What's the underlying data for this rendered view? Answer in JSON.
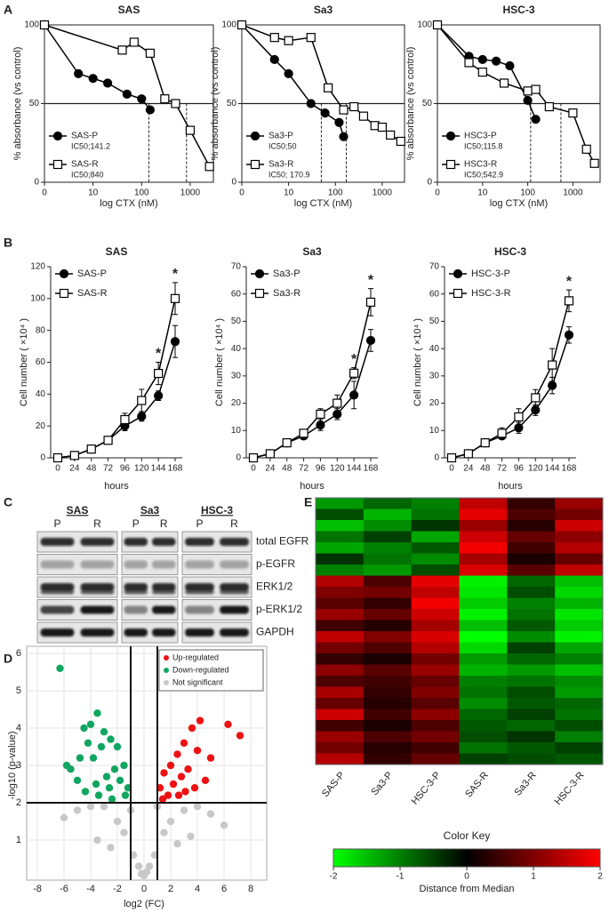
{
  "panels": [
    "A",
    "B",
    "C",
    "D",
    "E"
  ],
  "chart_data": [
    {
      "type": "line",
      "title": "SAS",
      "xscale": "log",
      "xlim": [
        0,
        3000
      ],
      "xticks": [
        0,
        10,
        100,
        1000
      ],
      "ylim": [
        0,
        100
      ],
      "yticks": [
        0,
        50,
        100
      ],
      "xlabel": "log CTX (nM)",
      "ylabel": "% absorbance (vs control)",
      "hline": 50,
      "frame": true,
      "legend": "lower left",
      "series": [
        {
          "name": "SAS-P",
          "marker": "circle",
          "color": "#000000",
          "x": [
            0,
            5,
            10,
            20,
            50,
            100,
            150
          ],
          "values": [
            100,
            69,
            66,
            63,
            56,
            53,
            46
          ],
          "ic50": 141.2,
          "ic50_label": "IC50;141.2"
        },
        {
          "name": "SAS-R",
          "marker": "square",
          "color": "#000000",
          "x": [
            0,
            40,
            70,
            150,
            300,
            500,
            1000,
            2500
          ],
          "values": [
            100,
            84,
            89,
            82,
            53,
            50,
            33,
            10
          ],
          "ic50": 840,
          "ic50_label": "IC50;840"
        }
      ]
    },
    {
      "type": "line",
      "title": "Sa3",
      "xscale": "log",
      "xlim": [
        0,
        3000
      ],
      "xticks": [
        0,
        10,
        100,
        1000
      ],
      "ylim": [
        0,
        100
      ],
      "yticks": [
        0,
        50,
        100
      ],
      "xlabel": "log CTX (nM)",
      "ylabel": "% absorbance (vs control)",
      "hline": 50,
      "frame": true,
      "legend": "lower left",
      "series": [
        {
          "name": "Sa3-P",
          "marker": "circle",
          "color": "#000000",
          "x": [
            0,
            5,
            10,
            30,
            60,
            120,
            150
          ],
          "values": [
            100,
            78,
            69,
            50,
            44,
            38,
            29
          ],
          "ic50": 50,
          "ic50_label": "IC50;50"
        },
        {
          "name": "Sa3-R",
          "marker": "square",
          "color": "#000000",
          "x": [
            0,
            5,
            10,
            30,
            70,
            150,
            250,
            400,
            700,
            1000,
            1500,
            2500
          ],
          "values": [
            100,
            92,
            90,
            92,
            60,
            46,
            48,
            42,
            36,
            35,
            30,
            26
          ],
          "ic50": 170.9,
          "ic50_label": "IC50; 170.9"
        }
      ]
    },
    {
      "type": "line",
      "title": "HSC-3",
      "xscale": "log",
      "xlim": [
        0,
        4000
      ],
      "xticks": [
        0,
        10,
        100,
        1000
      ],
      "ylim": [
        0,
        100
      ],
      "yticks": [
        0,
        50,
        100
      ],
      "xlabel": "log CTX (nM)",
      "ylabel": "% absorbance (vs control)",
      "hline": 50,
      "frame": true,
      "legend": "lower left",
      "series": [
        {
          "name": "HSC3-P",
          "marker": "circle",
          "color": "#000000",
          "x": [
            0,
            5,
            10,
            20,
            40,
            100,
            150
          ],
          "values": [
            100,
            80,
            78,
            77,
            74,
            52,
            40
          ],
          "ic50": 115.8,
          "ic50_label": "IC50;115.8"
        },
        {
          "name": "HSC3-R",
          "marker": "square",
          "color": "#000000",
          "x": [
            0,
            5,
            10,
            30,
            100,
            150,
            300,
            1000,
            2000,
            3000
          ],
          "values": [
            100,
            76,
            70,
            63,
            58,
            59,
            48,
            44,
            21,
            12
          ],
          "ic50": 542.9,
          "ic50_label": "IC50;542.9"
        }
      ]
    },
    {
      "type": "line",
      "title": "SAS",
      "x": [
        0,
        24,
        48,
        72,
        96,
        120,
        144,
        168
      ],
      "xlim": [
        0,
        168
      ],
      "xticks": [
        0,
        24,
        48,
        72,
        96,
        120,
        144,
        168
      ],
      "ylim": [
        0,
        120
      ],
      "yticks": [
        0,
        20,
        40,
        60,
        80,
        100,
        120
      ],
      "xlabel": "hours",
      "ylabel": "Cell number ( ×10⁴ )",
      "frame": false,
      "legend": "upper left",
      "series": [
        {
          "name": "SAS-P",
          "marker": "circle",
          "color": "#000000",
          "values": [
            0,
            1.5,
            5.5,
            11,
            20,
            26,
            39,
            73
          ],
          "errors": [
            0,
            0.5,
            1,
            1.5,
            3,
            3,
            3,
            10
          ]
        },
        {
          "name": "SAS-R",
          "marker": "square",
          "color": "#000000",
          "values": [
            0,
            1.5,
            5.5,
            11,
            24,
            36,
            53,
            100
          ],
          "errors": [
            0,
            0.5,
            1,
            2,
            4,
            7,
            7,
            10
          ]
        }
      ],
      "annotations": [
        {
          "x": 144,
          "text": "*"
        },
        {
          "x": 168,
          "text": "*"
        }
      ]
    },
    {
      "type": "line",
      "title": "Sa3",
      "x": [
        0,
        24,
        48,
        72,
        96,
        120,
        144,
        168
      ],
      "xlim": [
        0,
        168
      ],
      "xticks": [
        0,
        24,
        48,
        72,
        96,
        120,
        144,
        168
      ],
      "ylim": [
        0,
        70
      ],
      "yticks": [
        0,
        10,
        20,
        30,
        40,
        50,
        60,
        70
      ],
      "xlabel": "hours",
      "ylabel": "Cell number ( ×10⁴ )",
      "frame": false,
      "legend": "upper left",
      "series": [
        {
          "name": "Sa3-P",
          "marker": "circle",
          "color": "#000000",
          "values": [
            0,
            1.5,
            5.5,
            8,
            12,
            16,
            23,
            43
          ],
          "errors": [
            0,
            0.5,
            1,
            1,
            2,
            2,
            5,
            4
          ]
        },
        {
          "name": "Sa3-R",
          "marker": "square",
          "color": "#000000",
          "values": [
            0,
            1.5,
            5.5,
            9,
            16,
            20,
            31,
            57
          ],
          "errors": [
            0,
            0.5,
            1,
            1,
            2,
            3,
            2,
            5
          ]
        }
      ],
      "annotations": [
        {
          "x": 144,
          "text": "*"
        },
        {
          "x": 168,
          "text": "*"
        }
      ]
    },
    {
      "type": "line",
      "title": "HSC-3",
      "x": [
        0,
        24,
        48,
        72,
        96,
        120,
        144,
        168
      ],
      "xlim": [
        0,
        168
      ],
      "xticks": [
        0,
        24,
        48,
        72,
        96,
        120,
        144,
        168
      ],
      "ylim": [
        0,
        70
      ],
      "yticks": [
        0,
        10,
        20,
        30,
        40,
        50,
        60,
        70
      ],
      "xlabel": "hours",
      "ylabel": "Cell number ( ×10⁴ )",
      "frame": false,
      "legend": "upper left",
      "series": [
        {
          "name": "HSC-3-P",
          "marker": "circle",
          "color": "#000000",
          "values": [
            0,
            1.5,
            5.5,
            8,
            11,
            17.5,
            26.5,
            45
          ],
          "errors": [
            0,
            0.5,
            0.8,
            1,
            2,
            2,
            3,
            3
          ]
        },
        {
          "name": "HSC-3-R",
          "marker": "square",
          "color": "#000000",
          "values": [
            0,
            1.5,
            5.5,
            9,
            15,
            22,
            34,
            57.5
          ],
          "errors": [
            0,
            0.5,
            1,
            2,
            3,
            3,
            6,
            4
          ]
        }
      ],
      "annotations": [
        {
          "x": 168,
          "text": "*"
        }
      ]
    },
    {
      "type": "scatter",
      "xlabel": "log2 (FC)",
      "ylabel": "-log10 (p-value)",
      "xlim": [
        -8,
        8
      ],
      "xticks": [
        -8,
        -6,
        -4,
        -2,
        0,
        2,
        4,
        6,
        8
      ],
      "ylim": [
        0,
        6
      ],
      "yticks": [
        1,
        2,
        3,
        4,
        5,
        6
      ],
      "grid": true,
      "vlines": [
        -1,
        1
      ],
      "hline": 2,
      "legend": "upper right",
      "series": [
        {
          "name": "Up-regulated",
          "color": "#ee1111",
          "x": [
            6.3,
            7.2,
            5.0,
            4.2,
            3.6,
            3.0,
            2.5,
            2.0,
            1.5,
            1.2,
            4.0,
            3.3,
            2.8,
            2.2,
            1.8,
            4.6,
            3.8,
            2.6,
            1.4,
            3.1
          ],
          "values": [
            4.1,
            3.8,
            3.2,
            4.2,
            4.0,
            3.6,
            3.3,
            3.0,
            2.8,
            2.4,
            3.4,
            2.9,
            2.7,
            2.5,
            2.2,
            2.6,
            2.4,
            2.2,
            2.1,
            2.3
          ]
        },
        {
          "name": "Down-regulated",
          "color": "#11a660",
          "x": [
            -6.3,
            -5.8,
            -5.5,
            -4.5,
            -4,
            -3.5,
            -3,
            -2.5,
            -2,
            -1.5,
            -1.2,
            -4.2,
            -3.8,
            -3.2,
            -2.8,
            -2.2,
            -5,
            -4.8,
            -3.6,
            -2.6,
            -1.8,
            -3.4,
            -4.4,
            -2.4,
            -1.4
          ],
          "values": [
            5.6,
            3.0,
            2.9,
            4.0,
            4.1,
            4.4,
            3.9,
            3.7,
            3.5,
            3.0,
            2.4,
            3.6,
            3.2,
            3.5,
            2.7,
            2.9,
            2.6,
            3.2,
            2.5,
            2.4,
            2.6,
            2.2,
            2.3,
            2.1,
            2.2
          ]
        },
        {
          "name": "Not significant",
          "color": "#c8c8c8",
          "x": [
            -6,
            -5,
            -4,
            -3,
            -2,
            -1.5,
            -0.8,
            -0.4,
            0,
            0.4,
            0.8,
            1.5,
            2,
            3,
            4,
            5,
            6,
            -3.5,
            -2.5,
            2.5,
            3.5,
            -0.2,
            0.2,
            -1,
            1
          ],
          "values": [
            1.6,
            1.8,
            1.9,
            1.9,
            1.5,
            1.2,
            0.6,
            0.3,
            0.05,
            0.3,
            0.6,
            1.2,
            1.5,
            1.8,
            1.9,
            1.7,
            1.4,
            1.0,
            0.8,
            0.9,
            1.1,
            0.1,
            0.15,
            1.8,
            1.9
          ]
        }
      ]
    },
    {
      "type": "heatmap",
      "columns": [
        "SAS-P",
        "Sa3-P",
        "HSC-3-P",
        "SAS-R",
        "Sa3-R",
        "HSC-3-R"
      ],
      "colorscale": [
        "#00ff00",
        "#000000",
        "#ff0000"
      ],
      "zlim": [
        -2,
        2
      ],
      "zticks": [
        -2,
        -1,
        0,
        1,
        2
      ],
      "colorbar_title": "Color Key",
      "colorbar_label": "Distance from Median",
      "values": [
        [
          -1.2,
          -0.8,
          -1.0,
          1.5,
          0.4,
          1.2
        ],
        [
          -0.6,
          -1.4,
          -0.9,
          1.8,
          0.6,
          0.9
        ],
        [
          -1.5,
          -1.1,
          -0.4,
          1.2,
          0.3,
          1.6
        ],
        [
          -0.9,
          -0.5,
          -1.3,
          1.6,
          0.8,
          1.1
        ],
        [
          -1.3,
          -1.0,
          -0.7,
          1.9,
          0.5,
          1.4
        ],
        [
          -0.4,
          -0.9,
          -1.1,
          1.3,
          0.2,
          0.8
        ],
        [
          -1.0,
          -1.2,
          -0.6,
          1.7,
          0.7,
          1.5
        ],
        [
          1.4,
          0.6,
          1.8,
          -1.9,
          -0.8,
          -1.5
        ],
        [
          1.0,
          0.9,
          1.5,
          -1.8,
          -0.6,
          -1.7
        ],
        [
          0.7,
          0.4,
          1.9,
          -1.6,
          -1.0,
          -1.4
        ],
        [
          1.2,
          0.8,
          1.6,
          -1.9,
          -0.9,
          -1.8
        ],
        [
          0.5,
          0.3,
          1.3,
          -1.5,
          -0.7,
          -1.6
        ],
        [
          1.5,
          1.0,
          1.7,
          -2.0,
          -1.1,
          -1.9
        ],
        [
          0.9,
          0.6,
          1.4,
          -1.7,
          -0.5,
          -1.3
        ],
        [
          0.4,
          0.2,
          0.9,
          -1.2,
          -0.8,
          -1.0
        ],
        [
          1.1,
          0.7,
          1.2,
          -1.4,
          -1.2,
          -1.5
        ],
        [
          0.6,
          0.5,
          0.8,
          -1.0,
          -0.9,
          -1.1
        ],
        [
          1.3,
          0.4,
          1.0,
          -0.9,
          -0.6,
          -1.2
        ],
        [
          0.8,
          0.3,
          0.7,
          -1.1,
          -0.7,
          -0.8
        ],
        [
          1.6,
          0.5,
          1.1,
          -0.8,
          -0.5,
          -0.9
        ],
        [
          0.5,
          0.2,
          0.6,
          -0.7,
          -0.8,
          -0.6
        ],
        [
          1.2,
          0.6,
          0.9,
          -0.6,
          -0.4,
          -1.0
        ],
        [
          0.9,
          0.3,
          0.5,
          -0.9,
          -0.7,
          -0.5
        ],
        [
          1.4,
          0.4,
          0.8,
          -0.5,
          -0.6,
          -0.7
        ]
      ]
    }
  ],
  "blot": {
    "groups": [
      {
        "name": "SAS",
        "lanes": [
          "P",
          "R"
        ]
      },
      {
        "name": "Sa3",
        "lanes": [
          "P",
          "R"
        ]
      },
      {
        "name": "HSC-3",
        "lanes": [
          "P",
          "R"
        ]
      }
    ],
    "proteins": [
      "total EGFR",
      "p-EGFR",
      "ERK1/2",
      "p-ERK1/2",
      "GAPDH"
    ]
  }
}
